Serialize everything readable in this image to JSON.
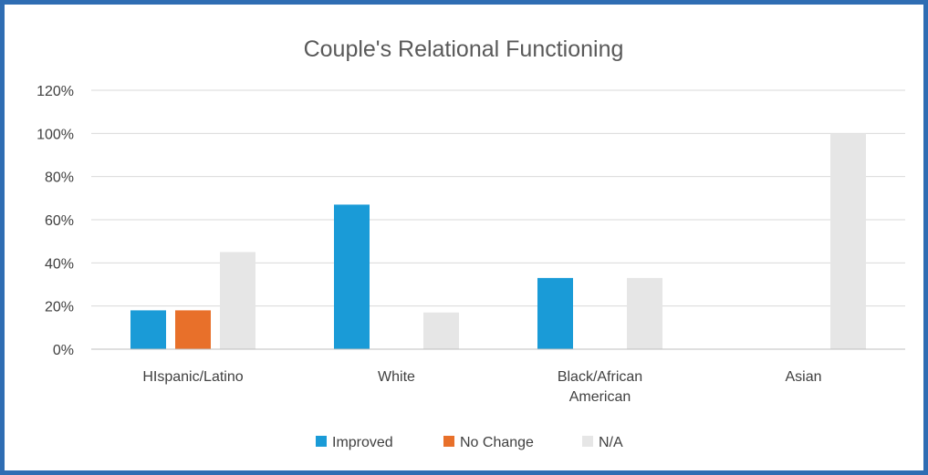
{
  "chart_data": {
    "type": "bar",
    "title": "Couple's Relational Functioning",
    "categories": [
      [
        "HIspanic/Latino"
      ],
      [
        "White"
      ],
      [
        "Black/African",
        "American"
      ],
      [
        "Asian"
      ]
    ],
    "series": [
      {
        "name": "Improved",
        "color": "#1a9bd7",
        "values": [
          18,
          67,
          33,
          0
        ]
      },
      {
        "name": "No Change",
        "color": "#e8702a",
        "values": [
          18,
          0,
          0,
          0
        ]
      },
      {
        "name": "N/A",
        "color": "#e6e6e6",
        "values": [
          45,
          17,
          33,
          100
        ]
      }
    ],
    "ylim": [
      0,
      120
    ],
    "yticks": [
      0,
      20,
      40,
      60,
      80,
      100,
      120
    ],
    "ytick_labels": [
      "0%",
      "20%",
      "40%",
      "60%",
      "80%",
      "100%",
      "120%"
    ],
    "xlabel": "",
    "ylabel": "",
    "grid": true,
    "legend_position": "bottom"
  }
}
